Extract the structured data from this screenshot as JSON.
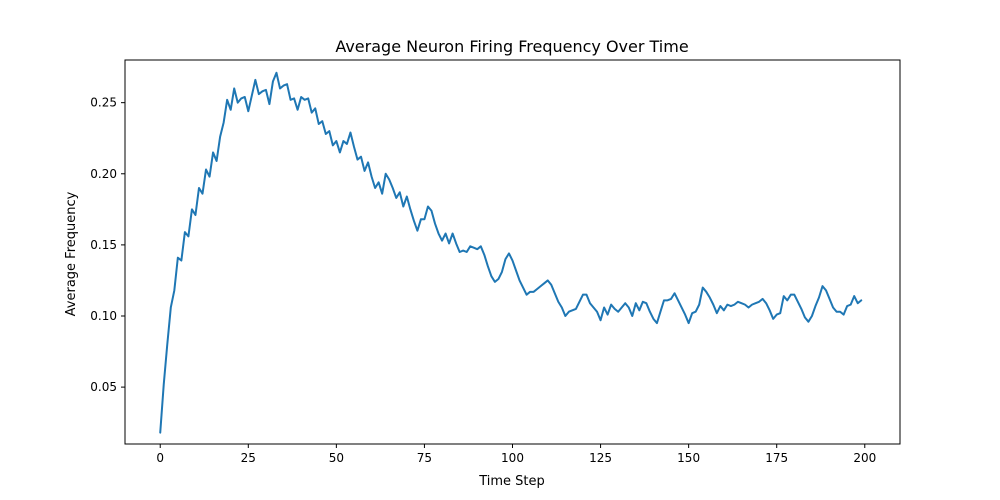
{
  "chart_data": {
    "type": "line",
    "title": "Average Neuron Firing Frequency Over Time",
    "xlabel": "Time Step",
    "ylabel": "Average Frequency",
    "xlim": [
      -10,
      210
    ],
    "ylim": [
      0.01,
      0.28
    ],
    "xticks": [
      0,
      25,
      50,
      75,
      100,
      125,
      150,
      175,
      200
    ],
    "yticks": [
      0.05,
      0.1,
      0.15,
      0.2,
      0.25
    ],
    "ytick_labels": [
      "0.05",
      "0.10",
      "0.15",
      "0.20",
      "0.25"
    ],
    "grid": false,
    "legend": "none",
    "color": "#1f77b4",
    "series": [
      {
        "name": "",
        "x_start": 0,
        "x_step": 1,
        "values": [
          0.018,
          0.052,
          0.08,
          0.106,
          0.118,
          0.141,
          0.139,
          0.159,
          0.156,
          0.175,
          0.171,
          0.19,
          0.186,
          0.203,
          0.198,
          0.215,
          0.209,
          0.226,
          0.236,
          0.252,
          0.245,
          0.26,
          0.25,
          0.253,
          0.254,
          0.244,
          0.255,
          0.266,
          0.256,
          0.258,
          0.259,
          0.249,
          0.265,
          0.271,
          0.26,
          0.262,
          0.263,
          0.252,
          0.253,
          0.245,
          0.254,
          0.252,
          0.253,
          0.243,
          0.246,
          0.235,
          0.237,
          0.228,
          0.23,
          0.22,
          0.223,
          0.215,
          0.223,
          0.221,
          0.229,
          0.219,
          0.21,
          0.212,
          0.202,
          0.208,
          0.198,
          0.19,
          0.194,
          0.186,
          0.2,
          0.196,
          0.19,
          0.183,
          0.187,
          0.177,
          0.184,
          0.175,
          0.167,
          0.16,
          0.168,
          0.168,
          0.177,
          0.174,
          0.165,
          0.158,
          0.153,
          0.158,
          0.151,
          0.158,
          0.151,
          0.145,
          0.146,
          0.145,
          0.149,
          0.148,
          0.147,
          0.149,
          0.143,
          0.135,
          0.128,
          0.124,
          0.126,
          0.131,
          0.14,
          0.144,
          0.139,
          0.132,
          0.125,
          0.12,
          0.115,
          0.117,
          0.117,
          0.119,
          0.121,
          0.123,
          0.125,
          0.122,
          0.116,
          0.11,
          0.106,
          0.1,
          0.103,
          0.104,
          0.105,
          0.11,
          0.115,
          0.115,
          0.109,
          0.106,
          0.103,
          0.097,
          0.106,
          0.101,
          0.108,
          0.105,
          0.103,
          0.106,
          0.109,
          0.106,
          0.1,
          0.109,
          0.104,
          0.11,
          0.109,
          0.103,
          0.098,
          0.095,
          0.103,
          0.111,
          0.111,
          0.112,
          0.116,
          0.111,
          0.106,
          0.101,
          0.095,
          0.102,
          0.103,
          0.108,
          0.12,
          0.117,
          0.113,
          0.108,
          0.102,
          0.107,
          0.104,
          0.108,
          0.107,
          0.108,
          0.11,
          0.109,
          0.108,
          0.106,
          0.108,
          0.109,
          0.11,
          0.112,
          0.109,
          0.104,
          0.098,
          0.101,
          0.102,
          0.114,
          0.111,
          0.115,
          0.115,
          0.11,
          0.105,
          0.099,
          0.096,
          0.1,
          0.107,
          0.113,
          0.121,
          0.118,
          0.112,
          0.106,
          0.103,
          0.103,
          0.101,
          0.107,
          0.108,
          0.114,
          0.109,
          0.111
        ]
      }
    ]
  }
}
